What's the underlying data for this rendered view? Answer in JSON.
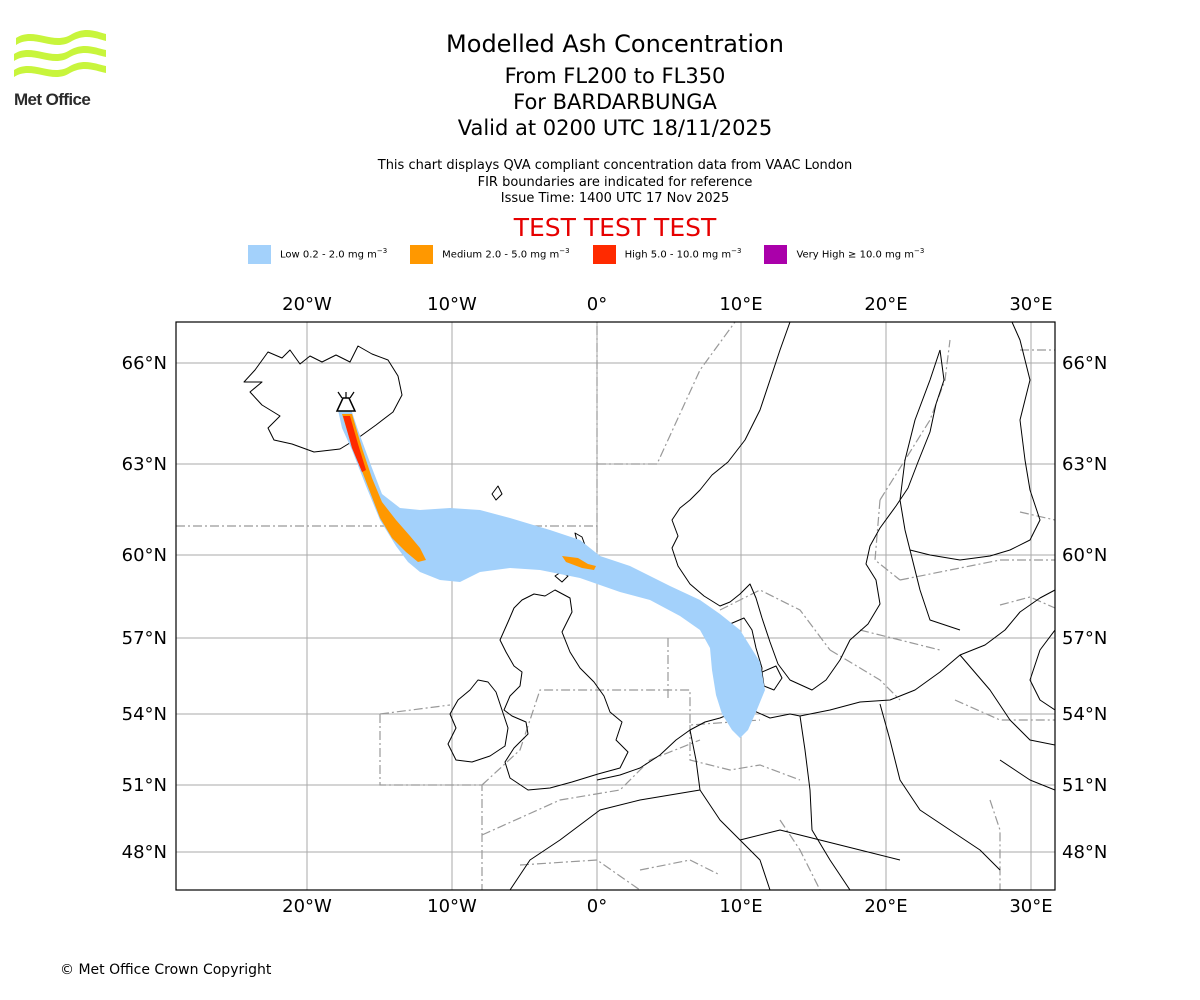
{
  "logo": {
    "name": "Met Office"
  },
  "header": {
    "title": "Modelled Ash Concentration",
    "levels": "From FL200 to FL350",
    "volcano": "For BARDARBUNGA",
    "valid": "Valid at 0200 UTC 18/11/2025",
    "info1": "This chart displays QVA compliant concentration data from VAAC London",
    "info2": "FIR boundaries are indicated for reference",
    "issue": "Issue Time: 1400 UTC 17 Nov 2025",
    "test": "TEST TEST TEST"
  },
  "legend": [
    {
      "label": "Low 0.2 - 2.0 mg m",
      "sup": "−3",
      "color": "#a3d1fb"
    },
    {
      "label": "Medium 2.0 - 5.0 mg m",
      "sup": "−3",
      "color": "#ff9800"
    },
    {
      "label": "High 5.0 - 10.0 mg m",
      "sup": "−3",
      "color": "#ff2a00"
    },
    {
      "label": "Very High ≥ 10.0 mg m",
      "sup": "−3",
      "color": "#aa00aa"
    }
  ],
  "map": {
    "lon_ticks": [
      "20°W",
      "10°W",
      "0°",
      "10°E",
      "20°E",
      "30°E"
    ],
    "lat_ticks": [
      "66°N",
      "63°N",
      "60°N",
      "57°N",
      "54°N",
      "51°N",
      "48°N"
    ],
    "volcano_icon": "volcano-icon",
    "colors": {
      "low": "#a3d1fb",
      "medium": "#ff9800",
      "high": "#ff2a00",
      "grid": "#aaaaaa",
      "fir": "#999999"
    }
  },
  "footer": {
    "copyright": "© Met Office Crown Copyright"
  }
}
